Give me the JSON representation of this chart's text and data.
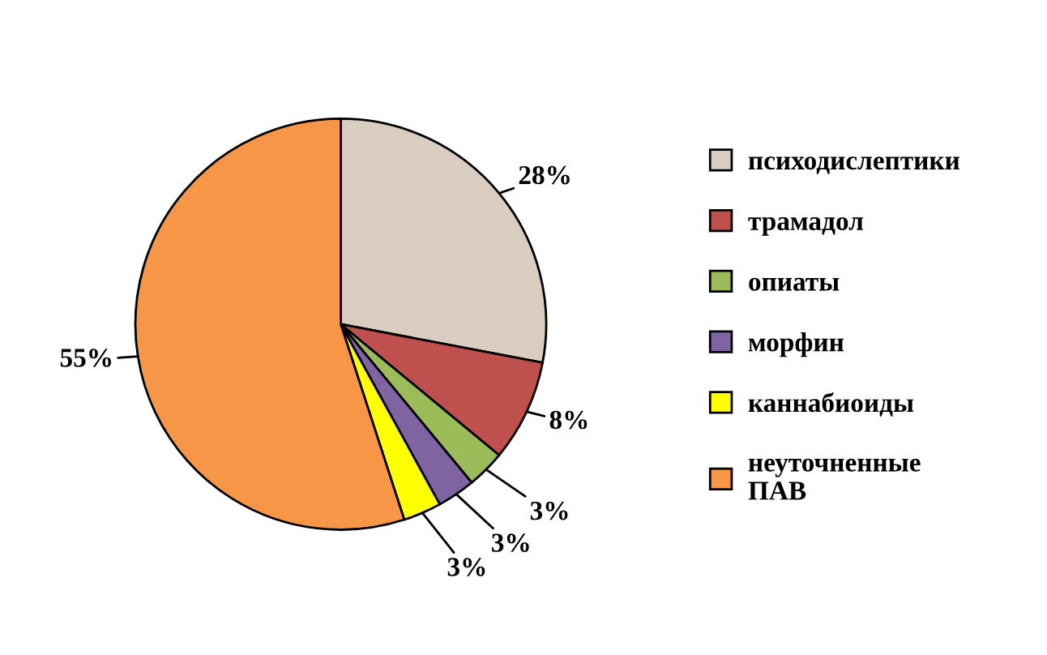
{
  "chart_data": {
    "type": "pie",
    "categories": [
      "психодислептики",
      "трамадол",
      "опиаты",
      "морфин",
      "каннабиоиды",
      "неуточненные\nПАВ"
    ],
    "values": [
      28,
      8,
      3,
      3,
      3,
      55
    ],
    "value_labels": [
      "28%",
      "8%",
      "3%",
      "3%",
      "3%",
      "55%"
    ],
    "colors": [
      "#d9cdc1",
      "#c0504d",
      "#9bbb59",
      "#8064a2",
      "#ffff00",
      "#f79646"
    ],
    "legend": "right"
  }
}
